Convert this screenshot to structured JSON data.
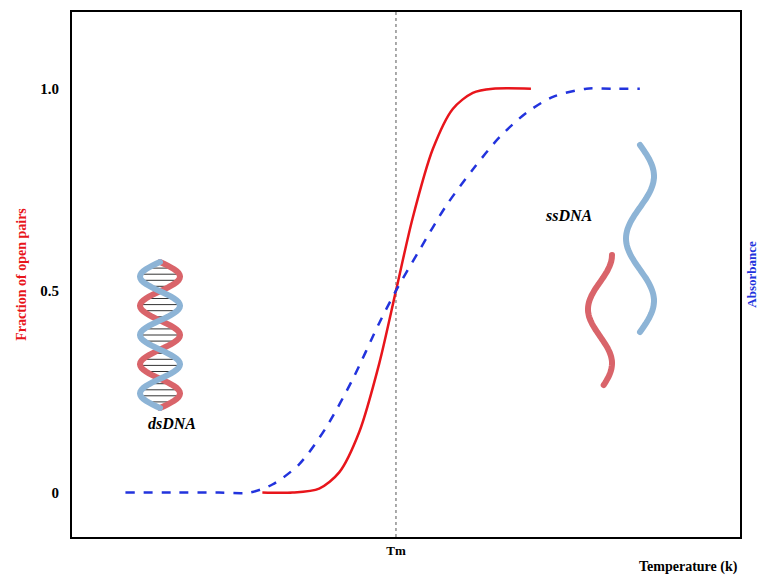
{
  "chart_data": {
    "type": "line",
    "x_label": "Temperature (k)",
    "y_label": "Fraction of open pairs",
    "y2_label": "Absorbance",
    "xlim": [
      0,
      100
    ],
    "xticks": [
      {
        "value": 48.5,
        "label": "Tm"
      }
    ],
    "ylim": [
      -0.11,
      1.19
    ],
    "yticks": [
      0,
      0.5,
      {
        "value": 1,
        "label": "1.0"
      }
    ],
    "y2lim": [
      -0.11,
      1.19
    ],
    "y2ticks": [],
    "grid": false,
    "series": [
      {
        "name": "Fraction of open pairs",
        "color": "#e8151b",
        "line_style": "solid",
        "x": [
          28.5,
          33,
          37,
          40,
          43,
          46,
          48.5,
          51,
          54,
          57,
          60,
          63,
          68.7
        ],
        "values": [
          0,
          0,
          0.01,
          0.05,
          0.15,
          0.32,
          0.5,
          0.68,
          0.85,
          0.95,
          0.99,
          1,
          1
        ]
      },
      {
        "name": "Absorbance",
        "color": "#2233dd",
        "line_style": "dashed",
        "axis": "y2",
        "x": [
          8,
          15,
          22,
          26.6,
          30,
          34,
          38,
          42,
          46,
          48.5,
          52,
          56,
          60,
          64,
          68,
          72,
          77,
          81,
          85
        ],
        "values": [
          0,
          0,
          0,
          0,
          0.02,
          0.07,
          0.16,
          0.28,
          0.42,
          0.5,
          0.6,
          0.71,
          0.8,
          0.88,
          0.94,
          0.98,
          1,
          1,
          1
        ]
      }
    ],
    "annotations": [
      {
        "text": "dsDNA",
        "x": 15,
        "y": 0.17
      },
      {
        "text": "ssDNA",
        "x": 74.4,
        "y": 0.685
      }
    ]
  }
}
